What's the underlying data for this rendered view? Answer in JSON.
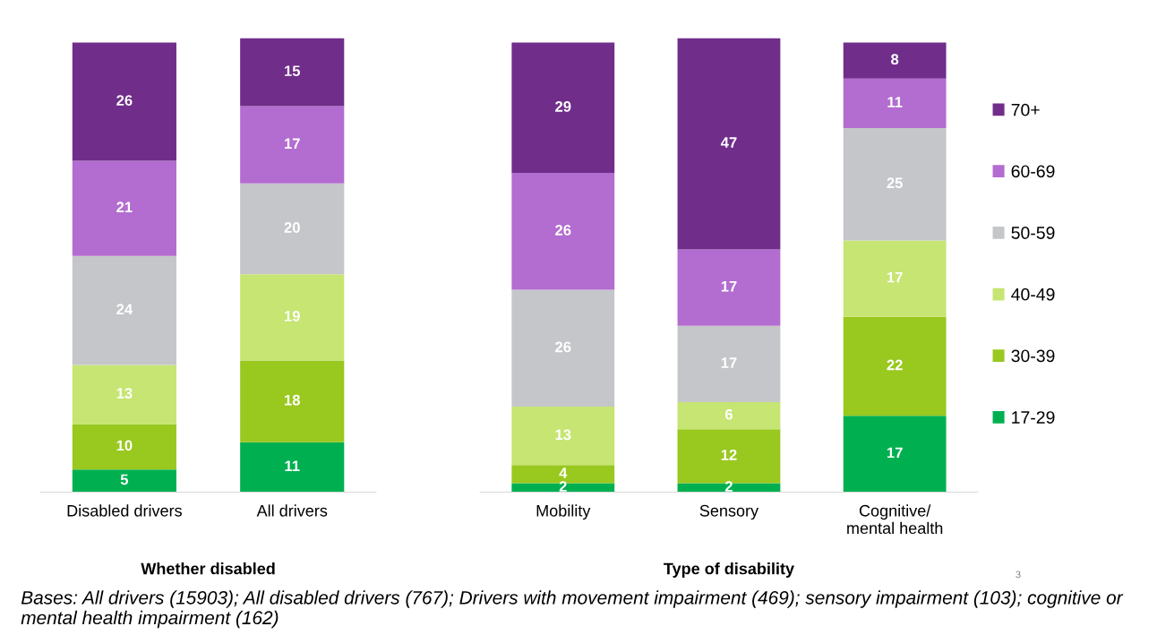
{
  "chart_data": [
    {
      "type": "bar",
      "stacked": true,
      "data_labels": true,
      "tick_labels": "x",
      "grid": false,
      "legend": false,
      "xlabel": "Whether disabled",
      "categories": [
        "Disabled drivers",
        "All drivers"
      ],
      "series": [
        {
          "color": "#00b050",
          "values": [
            5,
            11
          ]
        },
        {
          "color": "#99c81f",
          "values": [
            10,
            18
          ]
        },
        {
          "color": "#c6e572",
          "values": [
            13,
            19
          ]
        },
        {
          "color": "#c5c6ca",
          "values": [
            24,
            20
          ]
        },
        {
          "color": "#b36cd0",
          "values": [
            21,
            17
          ]
        },
        {
          "color": "#702d8a",
          "values": [
            26,
            15
          ]
        }
      ]
    },
    {
      "type": "bar",
      "stacked": true,
      "data_labels": true,
      "tick_labels": "x",
      "grid": false,
      "legend": "right",
      "xlabel": "Type of disability",
      "categories": [
        "Mobility",
        "Sensory",
        "Cognitive/\nmental health"
      ],
      "series": [
        {
          "name": "17-29",
          "color": "#00b050",
          "values": [
            2,
            2,
            17
          ]
        },
        {
          "name": "30-39",
          "color": "#99c81f",
          "values": [
            4,
            12,
            22
          ]
        },
        {
          "name": "40-49",
          "color": "#c6e572",
          "values": [
            13,
            6,
            17
          ]
        },
        {
          "name": "50-59",
          "color": "#c5c6ca",
          "values": [
            26,
            17,
            25
          ]
        },
        {
          "name": "60-69",
          "color": "#b36cd0",
          "values": [
            26,
            17,
            11
          ]
        },
        {
          "name": "70+",
          "color": "#702d8a",
          "values": [
            29,
            47,
            8
          ]
        }
      ],
      "annotations": [
        "3",
        "Bases: All drivers (15903); All disabled drivers (767); Drivers with movement impairment (469); sensory impairment (103); cognitive or mental health impairment (162)"
      ]
    }
  ]
}
